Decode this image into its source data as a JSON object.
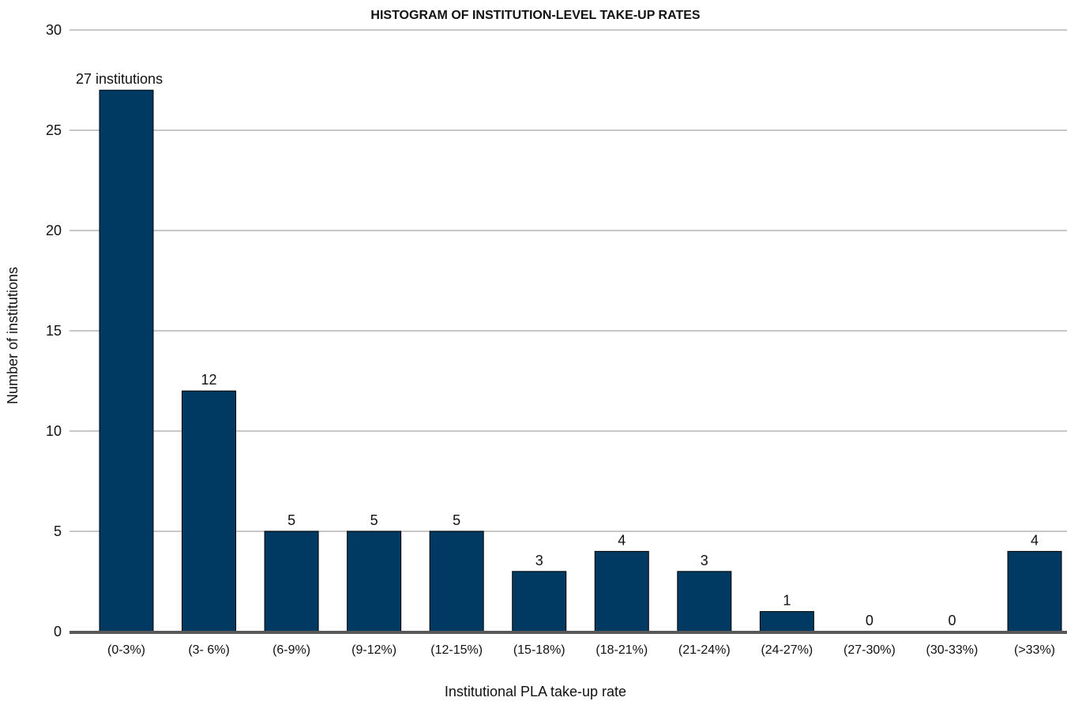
{
  "chart_data": {
    "type": "bar",
    "title": "HISTOGRAM OF INSTITUTION-LEVEL TAKE-UP RATES",
    "xlabel": "Institutional PLA take-up rate",
    "ylabel": "Number of institutions",
    "categories": [
      "(0-3%)",
      "(3- 6%)",
      "(6-9%)",
      "(9-12%)",
      "(12-15%)",
      "(15-18%)",
      "(18-21%)",
      "(21-24%)",
      "(24-27%)",
      "(27-30%)",
      "(30-33%)",
      "(>33%)"
    ],
    "values": [
      27,
      12,
      5,
      5,
      5,
      3,
      4,
      3,
      1,
      0,
      0,
      4
    ],
    "data_labels": [
      "27 institutions",
      "12",
      "5",
      "5",
      "5",
      "3",
      "4",
      "3",
      "1",
      "0",
      "0",
      "4"
    ],
    "ylim": [
      0,
      30
    ],
    "yticks": [
      "0",
      "5",
      "10",
      "15",
      "20",
      "25",
      "30"
    ],
    "grid": true,
    "legend": "none",
    "colors": {
      "bar": "#003a63",
      "grid": "#c8c8c8",
      "baseline": "#595959",
      "text": "#111111"
    }
  }
}
